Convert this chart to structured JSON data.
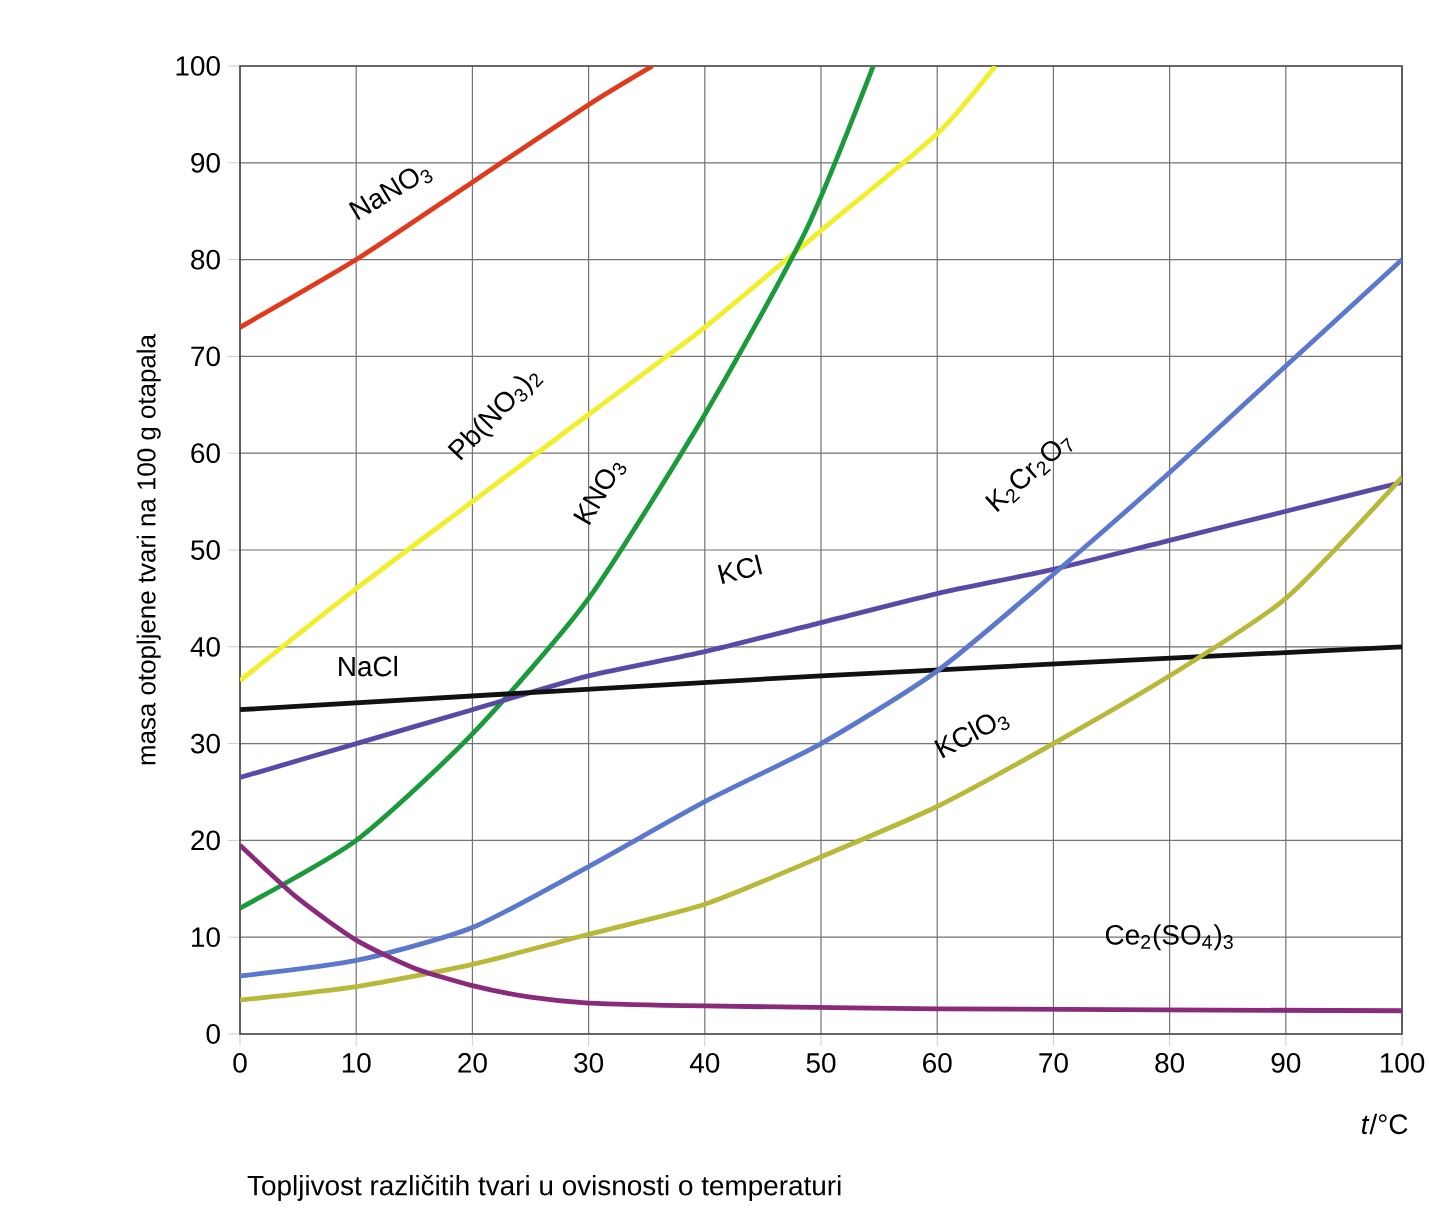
{
  "chart_data": {
    "type": "line",
    "xlabel": "*t*/°C",
    "ylabel": "masa otopljene tvari na 100 g otapala",
    "annotations": [
      "Topljivost različitih tvari u ovisnosti o temperaturi"
    ],
    "xlim": [
      0,
      100
    ],
    "ylim": [
      0,
      100
    ],
    "xticks": [
      0,
      10,
      20,
      30,
      40,
      50,
      60,
      70,
      80,
      90,
      100
    ],
    "yticks": [
      0,
      10,
      20,
      30,
      40,
      50,
      60,
      70,
      80,
      90,
      100
    ],
    "grid": true,
    "marker": "none",
    "line_style": "solid",
    "series": [
      {
        "name": "NaNO$_{3}$",
        "color": "#e03a1c",
        "x": [
          0,
          10,
          20,
          30,
          35.5
        ],
        "values": [
          73,
          80,
          88,
          96,
          100
        ]
      },
      {
        "name": "Pb(NO$_{3}$)$_{2}$",
        "color": "#f0ef2a",
        "x": [
          0,
          10,
          20,
          30,
          40,
          50,
          60,
          65
        ],
        "values": [
          36.5,
          46,
          55,
          64,
          73,
          83,
          93,
          100
        ]
      },
      {
        "name": "KNO$_{3}$",
        "color": "#1a9a3a",
        "x": [
          0,
          10,
          20,
          30,
          40,
          48.7,
          54.5
        ],
        "values": [
          13,
          20,
          31,
          45,
          64,
          83,
          100
        ]
      },
      {
        "name": "KCl",
        "color": "#5a4aa8",
        "x": [
          0,
          10,
          20,
          30,
          40,
          50,
          60,
          70,
          80,
          90,
          100
        ],
        "values": [
          26.5,
          30,
          33.5,
          37,
          39.5,
          42.5,
          45.5,
          48,
          51,
          54,
          57
        ]
      },
      {
        "name": "NaCl",
        "color": "#111111",
        "x": [
          0,
          50,
          100
        ],
        "values": [
          33.5,
          37,
          40
        ]
      },
      {
        "name": "K$_{2}$Cr$_{2}$O$_{7}$",
        "color": "#5b78cc",
        "x": [
          0,
          10,
          20,
          30,
          40,
          50,
          60,
          70,
          80,
          90,
          100
        ],
        "values": [
          6,
          7.6,
          11,
          17.3,
          24,
          30,
          37.5,
          47.5,
          58,
          69,
          80
        ]
      },
      {
        "name": "KClO$_{3}$",
        "color": "#b8b83a",
        "x": [
          0,
          10,
          20,
          30,
          40,
          50,
          60,
          70,
          80,
          90,
          100
        ],
        "values": [
          3.5,
          4.9,
          7.2,
          10.3,
          13.4,
          18.3,
          23.5,
          30,
          37,
          45,
          57.5
        ]
      },
      {
        "name": "Ce$_{2}$(SO$_{4}$)$_{3}$",
        "color": "#8a2a7a",
        "x": [
          0,
          5,
          10,
          15,
          20,
          25,
          30,
          40,
          60,
          100
        ],
        "values": [
          19.5,
          14,
          9.7,
          6.8,
          5,
          3.8,
          3.2,
          2.9,
          2.6,
          2.4
        ]
      }
    ]
  }
}
